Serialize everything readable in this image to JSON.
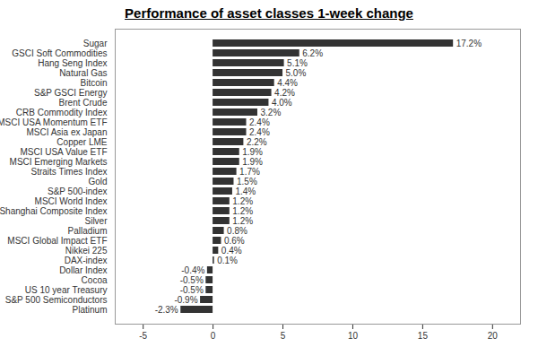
{
  "chart_data": {
    "type": "bar",
    "title": "Performance of asset classes 1-week change",
    "orientation": "horizontal",
    "categories": [
      "Sugar",
      "GSCI Soft Commodities",
      "Hang Seng Index",
      "Natural Gas",
      "Bitcoin",
      "S&P GSCI Energy",
      "Brent Crude",
      "CRB Commodity Index",
      "MSCI USA Momentum ETF",
      "MSCI Asia ex Japan",
      "Copper LME",
      "MSCI USA Value ETF",
      "MSCI Emerging Markets",
      "Straits Times Index",
      "Gold",
      "S&P 500-index",
      "MSCI World Index",
      "Shanghai Composite Index",
      "Silver",
      "Palladium",
      "MSCI Global Impact ETF",
      "Nikkei 225",
      "DAX-index",
      "Dollar Index",
      "Cocoa",
      "US 10 year Treasury",
      "S&P 500 Semiconductors",
      "Platinum"
    ],
    "values": [
      17.2,
      6.2,
      5.1,
      5.0,
      4.4,
      4.2,
      4.0,
      3.2,
      2.4,
      2.4,
      2.2,
      1.9,
      1.9,
      1.7,
      1.5,
      1.4,
      1.2,
      1.2,
      1.2,
      0.8,
      0.6,
      0.4,
      0.1,
      -0.4,
      -0.5,
      -0.5,
      -0.9,
      -2.3
    ],
    "value_labels": [
      "17.2%",
      "6.2%",
      "5.1%",
      "5.0%",
      "4.4%",
      "4.2%",
      "4.0%",
      "3.2%",
      "2.4%",
      "2.4%",
      "2.2%",
      "1.9%",
      "1.9%",
      "1.7%",
      "1.5%",
      "1.4%",
      "1.2%",
      "1.2%",
      "1.2%",
      "0.8%",
      "0.6%",
      "0.4%",
      "0.1%",
      "-0.4%",
      "-0.5%",
      "-0.5%",
      "-0.9%",
      "-2.3%"
    ],
    "data_labels": true,
    "color": "#333333",
    "xlim": [
      -7,
      22
    ],
    "xticks": [
      -5,
      0,
      5,
      10,
      15,
      20
    ],
    "grid": false
  }
}
